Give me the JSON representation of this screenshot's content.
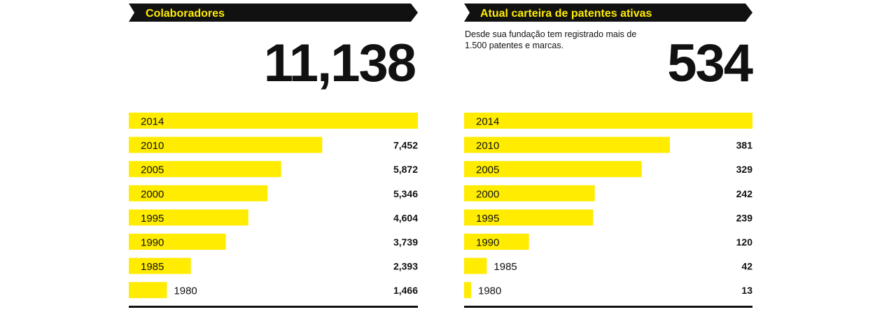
{
  "colors": {
    "bar": "#FFEC00",
    "banner": "#111111",
    "banner_text": "#FFEC00",
    "text": "#111111"
  },
  "chart_data": [
    {
      "type": "bar",
      "orientation": "horizontal",
      "title": "Colaboradores",
      "headline_value": "11,138",
      "categories": [
        "2014",
        "2010",
        "2005",
        "2000",
        "1995",
        "1990",
        "1985",
        "1980"
      ],
      "values": [
        11138,
        7452,
        5872,
        5346,
        4604,
        3739,
        2393,
        1466
      ],
      "value_labels": [
        "",
        "7,452",
        "5,872",
        "5,346",
        "4,604",
        "3,739",
        "2,393",
        "1,466"
      ],
      "xlim": [
        0,
        11138
      ]
    },
    {
      "type": "bar",
      "orientation": "horizontal",
      "title": "Atual carteira de patentes ativas",
      "note": "Desde sua fundação tem registrado mais de 1.500 patentes e marcas.",
      "headline_value": "534",
      "categories": [
        "2014",
        "2010",
        "2005",
        "2000",
        "1995",
        "1990",
        "1985",
        "1980"
      ],
      "values": [
        534,
        381,
        329,
        242,
        239,
        120,
        42,
        13
      ],
      "value_labels": [
        "",
        "381",
        "329",
        "242",
        "239",
        "120",
        "42",
        "13"
      ],
      "xlim": [
        0,
        534
      ]
    }
  ]
}
